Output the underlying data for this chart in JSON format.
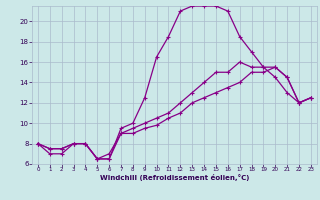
{
  "xlabel": "Windchill (Refroidissement éolien,°C)",
  "bg_color": "#cce8e8",
  "line_color": "#880088",
  "grid_color": "#aabbcc",
  "line1_x": [
    0,
    1,
    2,
    3,
    4,
    5,
    6,
    7,
    8,
    9,
    10,
    11,
    12,
    13,
    14,
    15,
    16,
    17,
    18,
    19,
    20,
    21,
    22,
    23
  ],
  "line1_y": [
    8,
    7,
    7,
    8,
    8,
    6.5,
    6.5,
    9.5,
    10,
    12.5,
    16.5,
    18.5,
    21,
    21.5,
    21.5,
    21.5,
    21,
    18.5,
    17,
    15.5,
    14.5,
    13,
    12,
    12.5
  ],
  "line2_x": [
    0,
    1,
    2,
    3,
    4,
    5,
    6,
    7,
    8,
    9,
    10,
    11,
    12,
    13,
    14,
    15,
    16,
    17,
    18,
    19,
    20,
    21,
    22,
    23
  ],
  "line2_y": [
    8,
    7.5,
    7.5,
    8,
    8,
    6.5,
    7,
    9,
    9.5,
    10,
    10.5,
    11,
    12,
    13,
    14,
    15,
    15,
    16,
    15.5,
    15.5,
    15.5,
    14.5,
    12,
    12.5
  ],
  "line3_x": [
    0,
    1,
    2,
    3,
    4,
    5,
    6,
    7,
    8,
    9,
    10,
    11,
    12,
    13,
    14,
    15,
    16,
    17,
    18,
    19,
    20,
    21,
    22,
    23
  ],
  "line3_y": [
    8,
    7.5,
    7.5,
    8,
    8,
    6.5,
    6.5,
    9,
    9,
    9.5,
    9.8,
    10.5,
    11,
    12,
    12.5,
    13,
    13.5,
    14,
    15,
    15,
    15.5,
    14.5,
    12,
    12.5
  ],
  "ylim": [
    6,
    21.5
  ],
  "xlim": [
    -0.5,
    23.5
  ],
  "yticks": [
    6,
    8,
    10,
    12,
    14,
    16,
    18,
    20
  ],
  "xticks": [
    0,
    1,
    2,
    3,
    4,
    5,
    6,
    7,
    8,
    9,
    10,
    11,
    12,
    13,
    14,
    15,
    16,
    17,
    18,
    19,
    20,
    21,
    22,
    23
  ]
}
